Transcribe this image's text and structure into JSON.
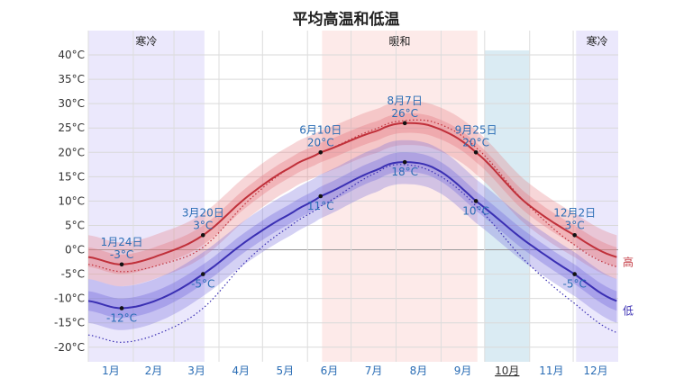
{
  "chart_data": {
    "type": "line",
    "title": "平均高温和低温",
    "ylim": [
      -23,
      45
    ],
    "y_ticks": [
      -20,
      -15,
      -10,
      -5,
      0,
      5,
      10,
      15,
      20,
      25,
      30,
      35,
      40
    ],
    "y_tick_labels": [
      "-20°C",
      "-15°C",
      "-10°C",
      "-5°C",
      "0°C",
      "5°C",
      "10°C",
      "15°C",
      "20°C",
      "25°C",
      "30°C",
      "35°C",
      "40°C"
    ],
    "months": [
      "1月",
      "2月",
      "3月",
      "4月",
      "5月",
      "6月",
      "7月",
      "8月",
      "9月",
      "10月",
      "11月",
      "12月"
    ],
    "selected_month": "10月",
    "seasons": [
      {
        "label": "寒冷",
        "start_day": 0,
        "end_day": 80,
        "color": "#e4e0fb"
      },
      {
        "label": "暖和",
        "start_day": 161,
        "end_day": 268,
        "color": "#fce3e1"
      },
      {
        "label": "寒冷",
        "start_day": 336,
        "end_day": 365,
        "color": "#e4e0fb"
      }
    ],
    "highlight_month": {
      "start_day": 273,
      "end_day": 304,
      "color": "#d3e8f1"
    },
    "series": [
      {
        "name": "高",
        "color": "#c0303a",
        "band_color": "#e4767f",
        "days": [
          0,
          23,
          50,
          79,
          110,
          140,
          160,
          200,
          217,
          240,
          267,
          300,
          335,
          364
        ],
        "values": [
          -1.5,
          -3,
          -1,
          3,
          11,
          17,
          20,
          24.5,
          26,
          25,
          20,
          10,
          3,
          -1.5
        ],
        "dotted": [
          -3,
          -4.5,
          -3,
          0.5,
          10,
          17,
          20,
          25,
          26.5,
          26,
          21,
          10,
          1,
          -3.5
        ]
      },
      {
        "name": "低",
        "color": "#3a2fb3",
        "band_color": "#6f67dc",
        "days": [
          0,
          23,
          50,
          79,
          110,
          140,
          160,
          200,
          217,
          240,
          267,
          300,
          335,
          364
        ],
        "values": [
          -10.5,
          -12,
          -10,
          -5,
          2,
          7.5,
          11,
          16.5,
          18,
          16.5,
          10,
          2,
          -5,
          -10.5
        ],
        "dotted": [
          -17.5,
          -19,
          -17,
          -12,
          -2,
          5,
          9,
          16,
          17.5,
          15.5,
          9,
          -2,
          -11,
          -17
        ]
      }
    ],
    "annotations": [
      {
        "day": 23,
        "value": -3,
        "date": "1月24日",
        "temp": "-3°C",
        "pos": "above"
      },
      {
        "day": 23,
        "value": -12,
        "date": "",
        "temp": "-12°C",
        "pos": "below"
      },
      {
        "day": 79,
        "value": 3,
        "date": "3月20日",
        "temp": "3°C",
        "pos": "above"
      },
      {
        "day": 79,
        "value": -5,
        "date": "",
        "temp": "-5°C",
        "pos": "below"
      },
      {
        "day": 160,
        "value": 20,
        "date": "6月10日",
        "temp": "20°C",
        "pos": "above"
      },
      {
        "day": 160,
        "value": 11,
        "date": "",
        "temp": "11°C",
        "pos": "below"
      },
      {
        "day": 218,
        "value": 26,
        "date": "8月7日",
        "temp": "26°C",
        "pos": "above"
      },
      {
        "day": 218,
        "value": 18,
        "date": "",
        "temp": "18°C",
        "pos": "below"
      },
      {
        "day": 267,
        "value": 20,
        "date": "9月25日",
        "temp": "20°C",
        "pos": "above"
      },
      {
        "day": 267,
        "value": 10,
        "date": "",
        "temp": "10°C",
        "pos": "below"
      },
      {
        "day": 335,
        "value": 3,
        "date": "12月2日",
        "temp": "3°C",
        "pos": "above"
      },
      {
        "day": 335,
        "value": -5,
        "date": "",
        "temp": "-5°C",
        "pos": "below"
      }
    ],
    "legend": [
      "高",
      "低"
    ]
  }
}
